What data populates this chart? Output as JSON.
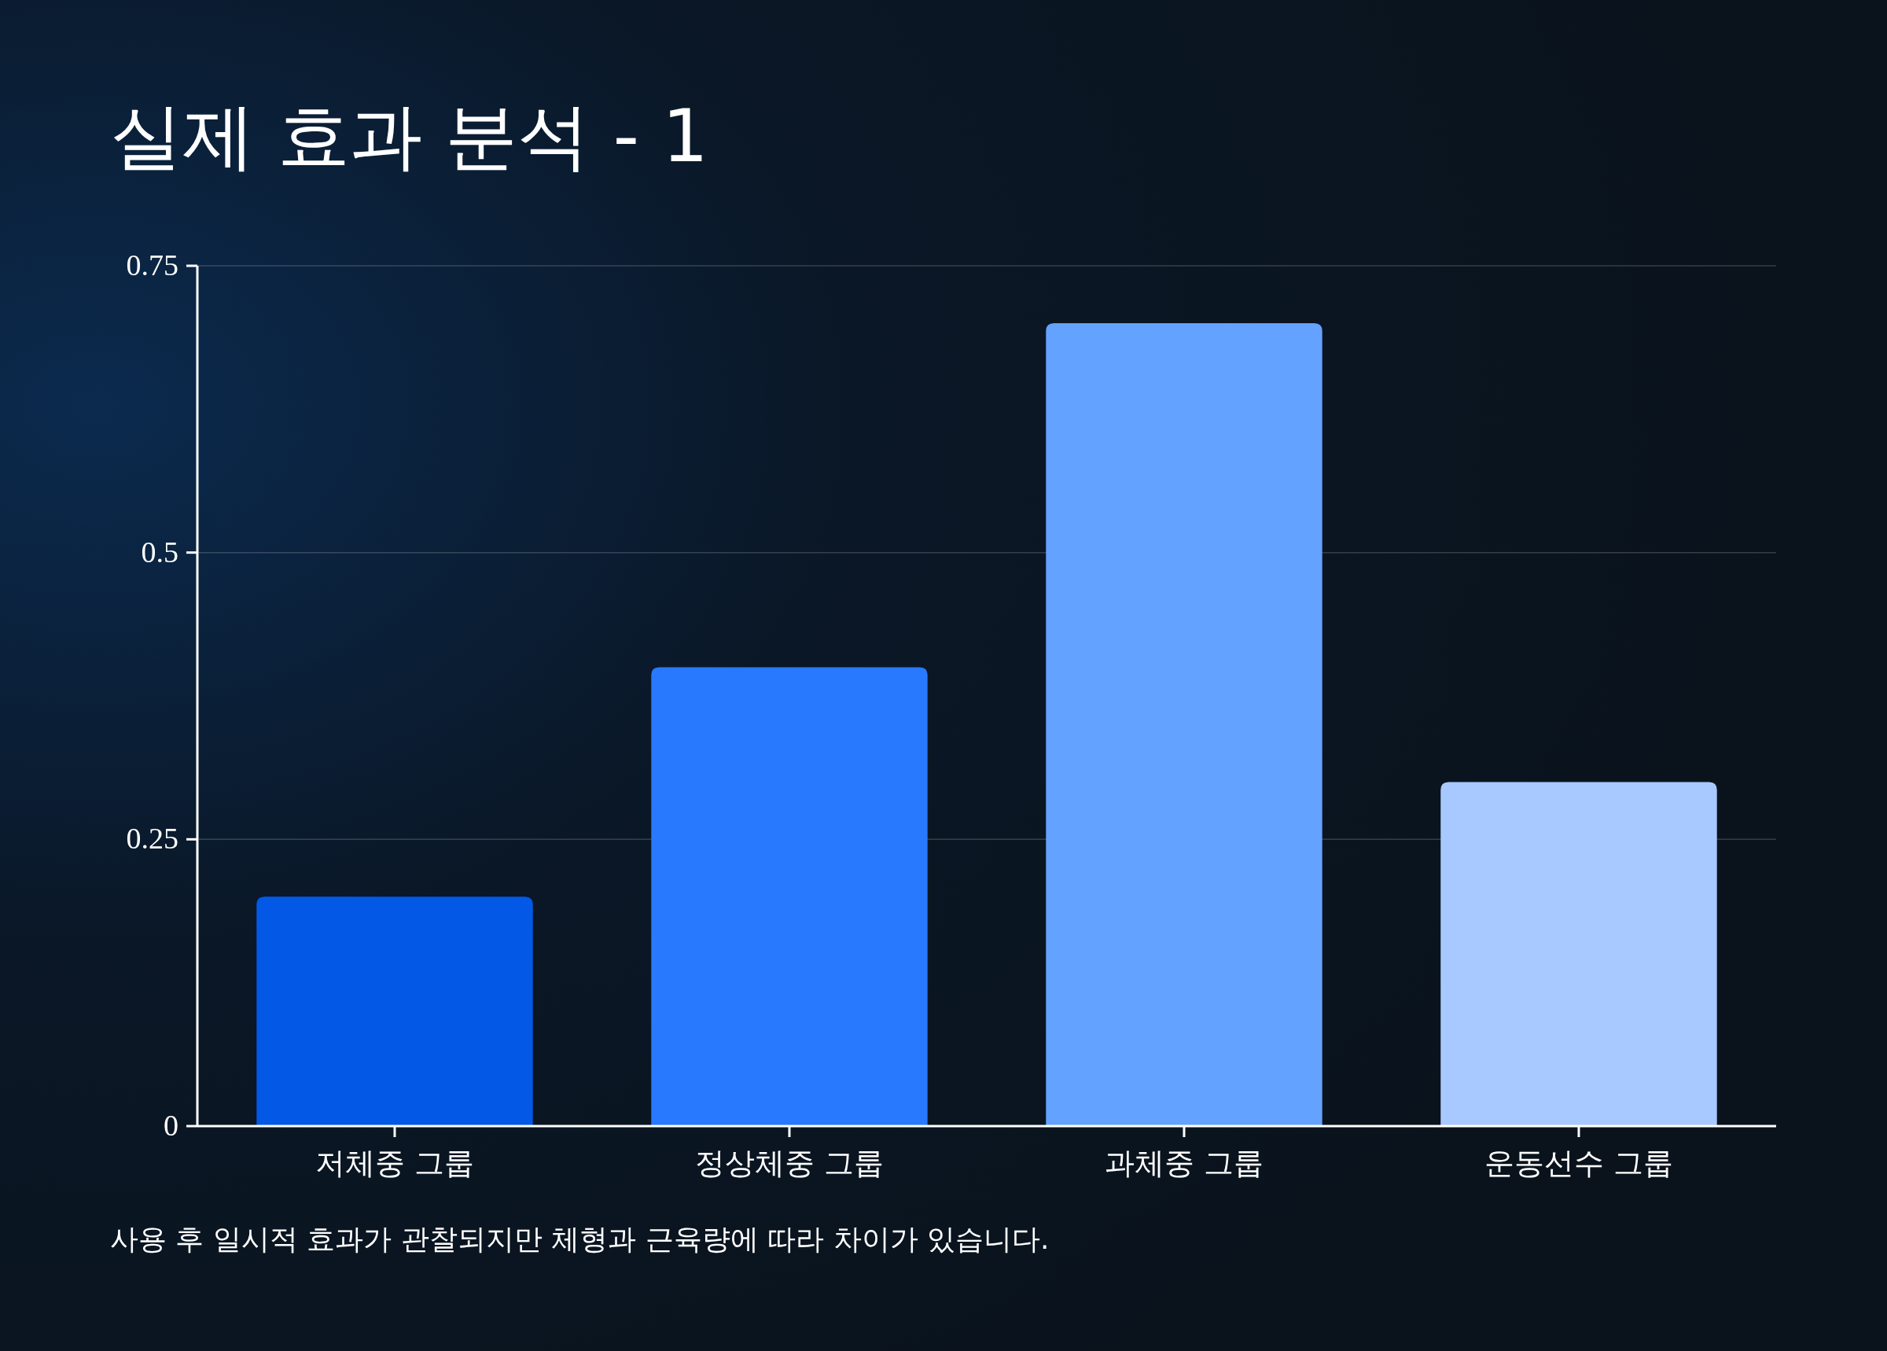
{
  "chart_data": {
    "type": "bar",
    "title": "실제 효과 분석 - 1",
    "categories": [
      "저체중 그룹",
      "정상체중 그룹",
      "과체중 그룹",
      "운동선수 그룹"
    ],
    "values": [
      0.2,
      0.4,
      0.7,
      0.3
    ],
    "colors": [
      "#0358e6",
      "#2979ff",
      "#64a2ff",
      "#a8c9ff"
    ],
    "ylim": [
      0,
      0.75
    ],
    "yticks": [
      0,
      0.25,
      0.5,
      0.75
    ],
    "grid": "y",
    "annotations": [
      "사용 후 일시적 효과가 관찰되지만 체형과 근육량에 따라 차이가 있습니다."
    ]
  }
}
